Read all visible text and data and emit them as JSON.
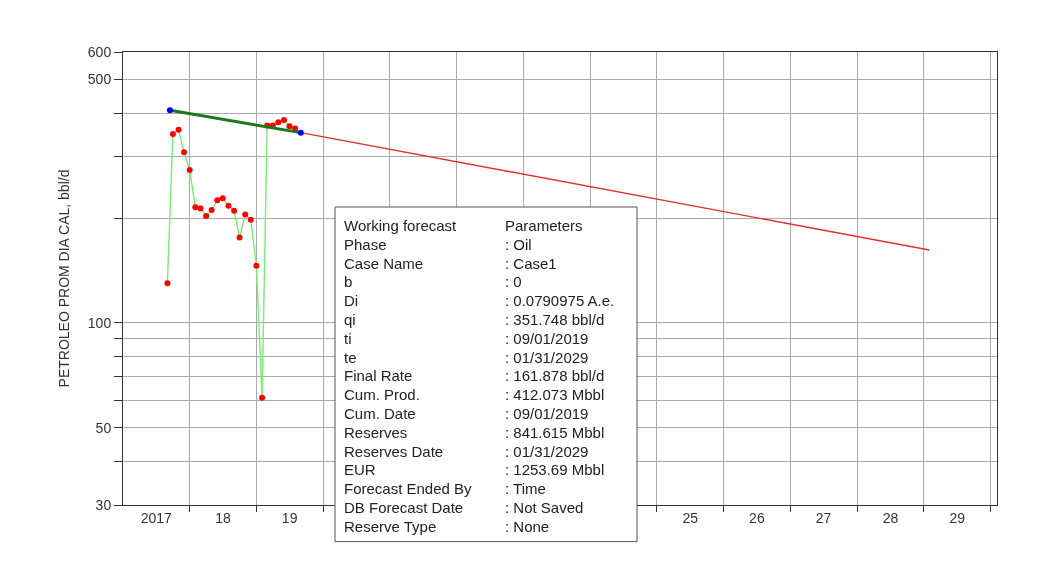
{
  "chart_data": {
    "type": "line",
    "ylabel": "PETROLEO PROM DIA CAL, bbl/d",
    "log": "y",
    "grid": true,
    "xlim": [
      "2017-01-01",
      "2030-02-05"
    ],
    "xticks": [
      {
        "value": "2017-07-02",
        "label": "2017"
      },
      {
        "value": "2018-07-02",
        "label": "18"
      },
      {
        "value": "2019-07-02",
        "label": "19"
      },
      {
        "value": "2025-07-02",
        "label": "25"
      },
      {
        "value": "2026-07-02",
        "label": "26"
      },
      {
        "value": "2027-07-02",
        "label": "27"
      },
      {
        "value": "2028-07-02",
        "label": "28"
      },
      {
        "value": "2029-07-02",
        "label": "29"
      },
      {
        "value": "2018-01-01",
        "label": null
      },
      {
        "value": "2019-01-01",
        "label": null
      },
      {
        "value": "2020-01-01",
        "label": null
      },
      {
        "value": "2021-01-01",
        "label": null
      },
      {
        "value": "2022-01-01",
        "label": null
      },
      {
        "value": "2023-01-01",
        "label": null
      },
      {
        "value": "2024-01-01",
        "label": null
      },
      {
        "value": "2025-01-01",
        "label": null
      },
      {
        "value": "2026-01-01",
        "label": null
      },
      {
        "value": "2027-01-01",
        "label": null
      },
      {
        "value": "2028-01-01",
        "label": null
      },
      {
        "value": "2029-01-01",
        "label": null
      },
      {
        "value": "2030-01-01",
        "label": null
      }
    ],
    "ylim": [
      30,
      600
    ],
    "yticks": [
      30,
      50,
      100,
      500,
      600,
      {
        "value": 40,
        "label": null
      },
      {
        "value": 60,
        "label": null
      },
      {
        "value": 70,
        "label": null
      },
      {
        "value": 80,
        "label": null
      },
      {
        "value": 90,
        "label": null
      },
      {
        "value": 200,
        "label": null
      },
      {
        "value": 300,
        "label": null
      },
      {
        "value": 400,
        "label": null
      }
    ],
    "series": [
      {
        "color": "#77ee77",
        "marker": "none",
        "x": [
          "2017-09",
          "2017-10",
          "2017-11",
          "2017-12",
          "2018-01",
          "2018-02",
          "2018-03",
          "2018-04",
          "2018-05",
          "2018-06",
          "2018-07",
          "2018-08",
          "2018-09",
          "2018-10",
          "2018-11",
          "2018-12",
          "2019-01",
          "2019-02",
          "2019-03",
          "2019-04",
          "2019-05",
          "2019-06",
          "2019-07",
          "2019-08"
        ],
        "values": [
          130,
          349,
          359,
          309,
          275,
          215,
          213,
          203,
          211,
          225,
          228,
          217,
          210,
          176,
          205,
          198,
          146,
          61,
          369,
          369,
          377,
          383,
          367,
          362
        ]
      },
      {
        "type": "scatter",
        "color": "#ff0000",
        "marker": "circle",
        "x": [
          "2017-09",
          "2017-10",
          "2017-11",
          "2017-12",
          "2018-01",
          "2018-02",
          "2018-03",
          "2018-04",
          "2018-05",
          "2018-06",
          "2018-07",
          "2018-08",
          "2018-09",
          "2018-10",
          "2018-11",
          "2018-12",
          "2019-01",
          "2019-02",
          "2019-03",
          "2019-04",
          "2019-05",
          "2019-06",
          "2019-07",
          "2019-08"
        ],
        "values": [
          130,
          349,
          359,
          309,
          275,
          215,
          213,
          203,
          211,
          225,
          228,
          217,
          210,
          176,
          205,
          198,
          146,
          61,
          369,
          369,
          377,
          383,
          367,
          362
        ]
      },
      {
        "color": "#1a7a1a",
        "marker": "none",
        "x": [
          "2017-09-15",
          "2019-09-01"
        ],
        "values": [
          408,
          352
        ]
      },
      {
        "color": "#e03030",
        "marker": "none",
        "x": [
          "2019-09-01",
          "2029-01-31"
        ],
        "values": [
          352,
          162
        ]
      },
      {
        "type": "scatter",
        "color": "#0000ff",
        "marker": "circle",
        "x": [
          "2017-09-15",
          "2019-09-01"
        ],
        "values": [
          408,
          352
        ]
      }
    ],
    "annotations": [
      "Working forecast",
      "Parameters",
      "Phase",
      ": Oil",
      "Case Name",
      ": Case1",
      "b",
      ": 0",
      "Di",
      ": 0.0790975 A.e.",
      "qi",
      ": 351.748 bbl/d",
      "ti",
      ": 09/01/2019",
      "te",
      ": 01/31/2029",
      "Final Rate",
      ": 161.878 bbl/d",
      "Cum. Prod.",
      ": 412.073 Mbbl",
      "Cum. Date",
      ": 09/01/2019",
      "Reserves",
      ": 841.615 Mbbl",
      "Reserves Date",
      ": 01/31/2029",
      "EUR",
      ": 1253.69 Mbbl",
      "Forecast Ended By",
      ": Time",
      "DB Forecast Date",
      ": Not Saved",
      "Reserve Type",
      ": None"
    ]
  }
}
